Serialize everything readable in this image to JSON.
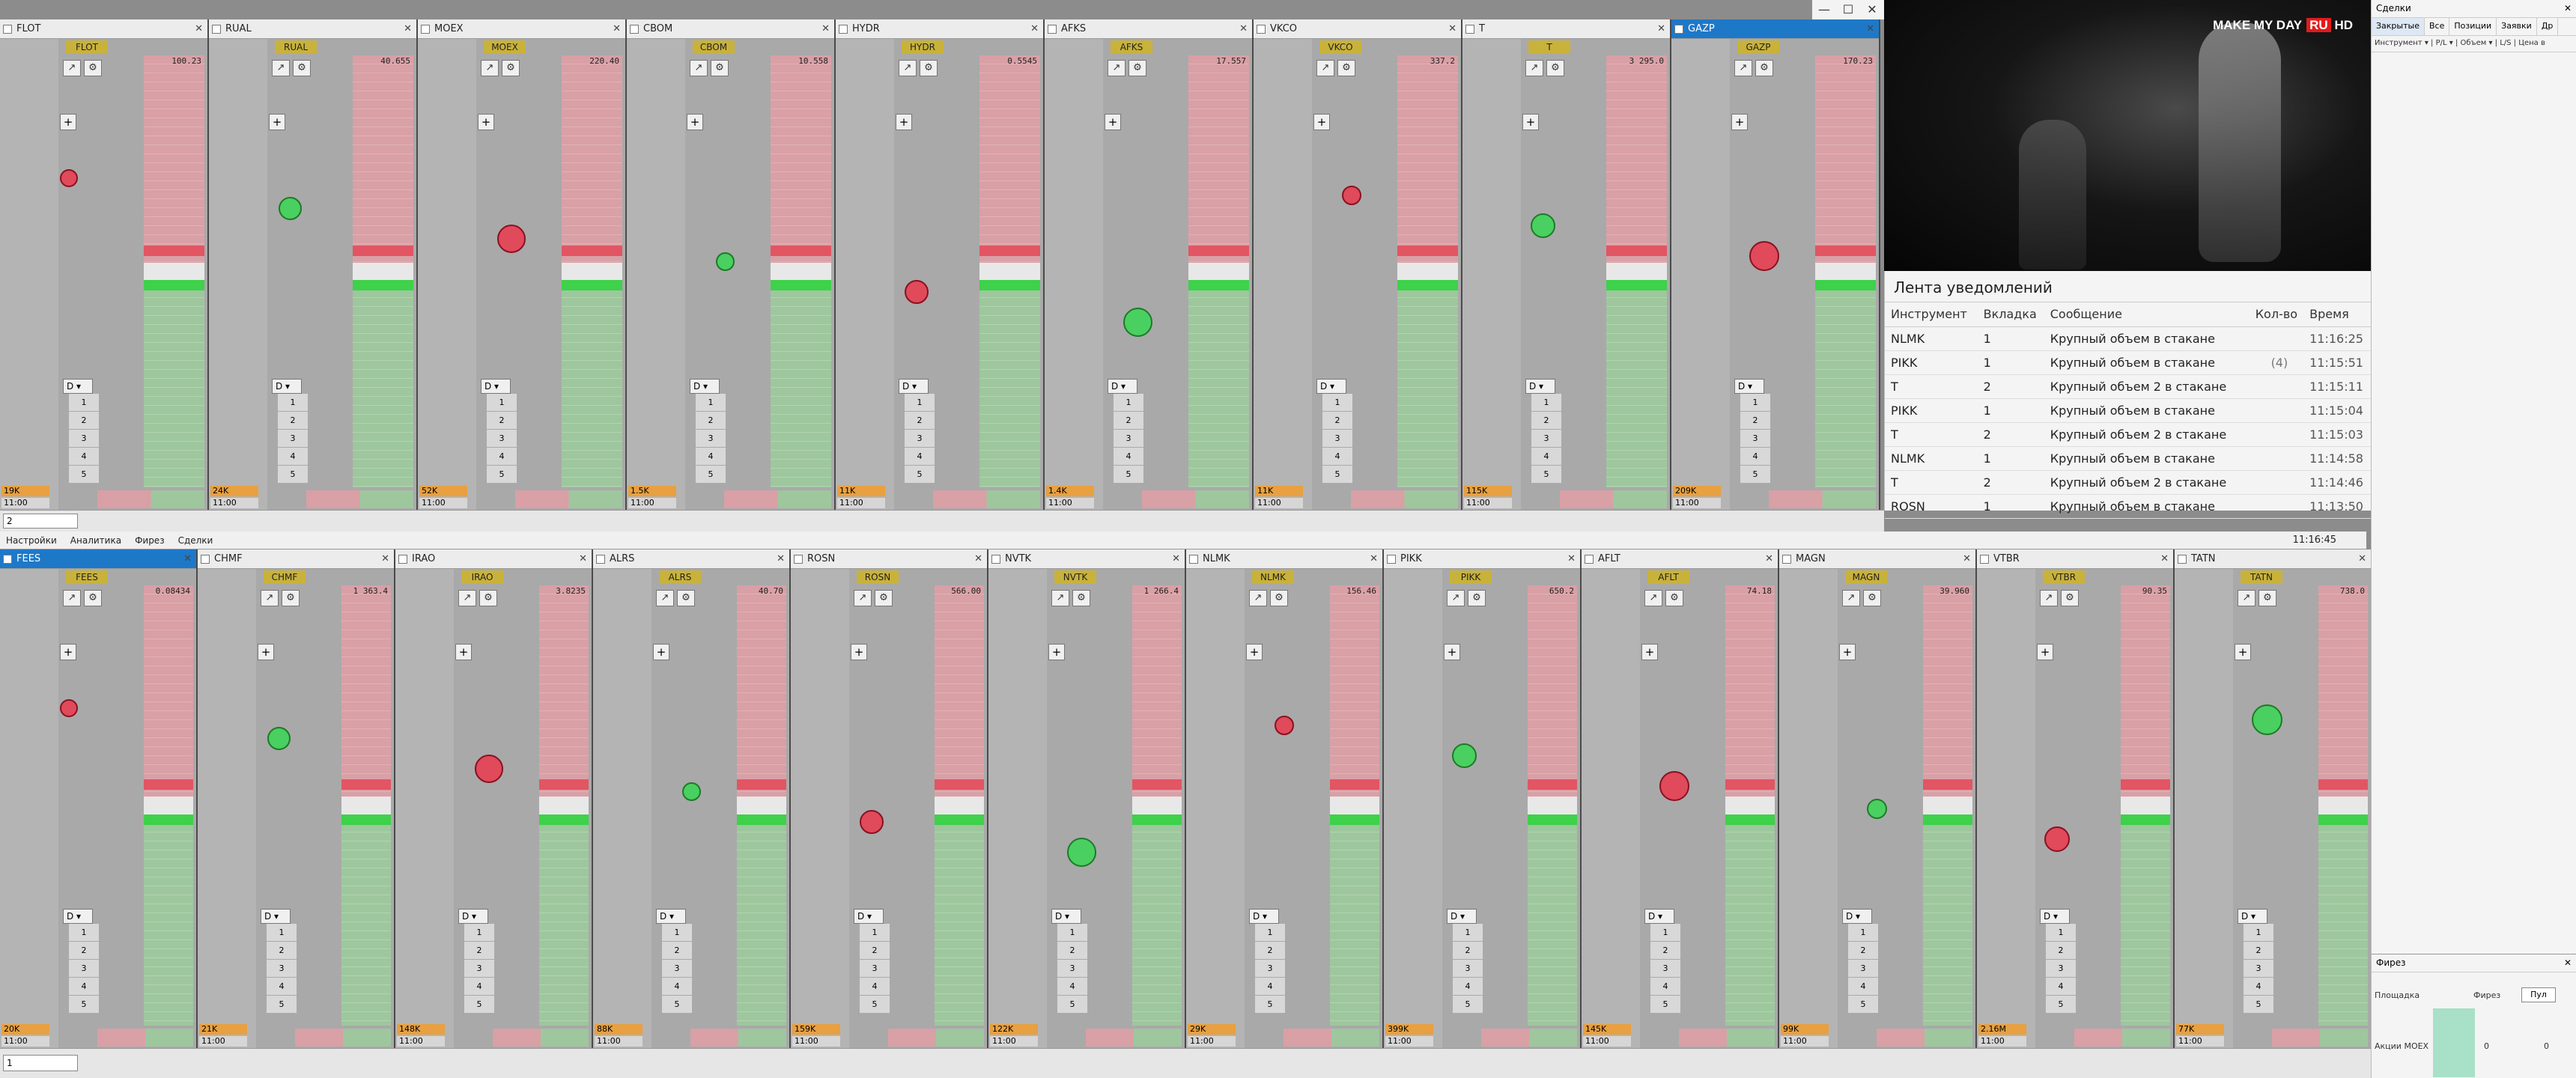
{
  "window": {
    "minimize": "—",
    "maximize": "☐",
    "close": "✕"
  },
  "top_tabs": [
    "FLOT",
    "RUAL",
    "MOEX",
    "CBOM",
    "HYDR",
    "AFKS",
    "VKCO",
    "T",
    "GAZP"
  ],
  "top_active_tab": "GAZP",
  "bottom_tabs": [
    "FEES",
    "CHMF",
    "IRAO",
    "ALRS",
    "ROSN",
    "NVTK",
    "NLMK",
    "PIKK",
    "AFLT",
    "MAGN",
    "VTBR",
    "TATN"
  ],
  "bottom_active_tab": "FEES",
  "top_ladders": [
    {
      "ticker": "FLOT",
      "price": "100.23",
      "vol": "19K",
      "time": "11:00"
    },
    {
      "ticker": "RUAL",
      "price": "40.655",
      "vol": "24K",
      "time": "11:00"
    },
    {
      "ticker": "MOEX",
      "price": "220.40",
      "vol": "52K",
      "time": "11:00"
    },
    {
      "ticker": "CBOM",
      "price": "10.558",
      "vol": "1.5K",
      "time": "11:00"
    },
    {
      "ticker": "HYDR",
      "price": "0.5545",
      "vol": "11K",
      "time": "11:00"
    },
    {
      "ticker": "AFKS",
      "price": "17.557",
      "vol": "1.4K",
      "time": "11:00"
    },
    {
      "ticker": "VKCO",
      "price": "337.2",
      "vol": "11K",
      "time": "11:00"
    },
    {
      "ticker": "T",
      "price": "3 295.0",
      "vol": "115K",
      "time": "11:00"
    },
    {
      "ticker": "GAZP",
      "price": "170.23",
      "vol": "209K",
      "time": "11:00"
    }
  ],
  "bottom_ladders": [
    {
      "ticker": "FEES",
      "price": "0.08434",
      "vol": "20K",
      "time": "11:00"
    },
    {
      "ticker": "CHMF",
      "price": "1 363.4",
      "vol": "21K",
      "time": "11:00"
    },
    {
      "ticker": "IRAO",
      "price": "3.8235",
      "vol": "148K",
      "time": "11:00"
    },
    {
      "ticker": "ALRS",
      "price": "40.70",
      "vol": "88K",
      "time": "11:00"
    },
    {
      "ticker": "ROSN",
      "price": "566.00",
      "vol": "159K",
      "time": "11:00"
    },
    {
      "ticker": "NVTK",
      "price": "1 266.4",
      "vol": "122K",
      "time": "11:00"
    },
    {
      "ticker": "NLMK",
      "price": "156.46",
      "vol": "29K",
      "time": "11:00"
    },
    {
      "ticker": "PIKK",
      "price": "650.2",
      "vol": "399K",
      "time": "11:00"
    },
    {
      "ticker": "AFLT",
      "price": "74.18",
      "vol": "145K",
      "time": "11:00"
    },
    {
      "ticker": "MAGN",
      "price": "39.960",
      "vol": "99K",
      "time": "11:00"
    },
    {
      "ticker": "VTBR",
      "price": "90.35",
      "vol": "2.16M",
      "time": "11:00"
    },
    {
      "ticker": "TATN",
      "price": "738.0",
      "vol": "77K",
      "time": "11:00"
    }
  ],
  "depth_levels": [
    "1",
    "2",
    "3",
    "4",
    "5"
  ],
  "dropdown_label": "D ▾",
  "top_row_field": "2",
  "bottom_row_field": "1",
  "menu": {
    "settings": "Настройки",
    "analytics": "Аналитика",
    "futures": "Фирез",
    "deals": "Сделки",
    "clock": "11:16:45"
  },
  "video": {
    "brand": "MAKE MY DAY",
    "badge": "RU",
    "quality": "HD"
  },
  "notifications": {
    "title": "Лента уведомлений",
    "headers": [
      "Инструмент",
      "Вкладка",
      "Сообщение",
      "Кол-во",
      "Время"
    ],
    "rows": [
      {
        "instrument": "NLMK",
        "tab": "1",
        "message": "Крупный объем в стакане",
        "count": "",
        "time": "11:16:25"
      },
      {
        "instrument": "PIKK",
        "tab": "1",
        "message": "Крупный объем в стакане",
        "count": "(4)",
        "time": "11:15:51"
      },
      {
        "instrument": "T",
        "tab": "2",
        "message": "Крупный объем 2 в стакане",
        "count": "",
        "time": "11:15:11"
      },
      {
        "instrument": "PIKK",
        "tab": "1",
        "message": "Крупный объем в стакане",
        "count": "",
        "time": "11:15:04"
      },
      {
        "instrument": "T",
        "tab": "2",
        "message": "Крупный объем 2 в стакане",
        "count": "",
        "time": "11:15:03"
      },
      {
        "instrument": "NLMK",
        "tab": "1",
        "message": "Крупный объем в стакане",
        "count": "",
        "time": "11:14:58"
      },
      {
        "instrument": "T",
        "tab": "2",
        "message": "Крупный объем 2 в стакане",
        "count": "",
        "time": "11:14:46"
      },
      {
        "instrument": "ROSN",
        "tab": "1",
        "message": "Крупный объем в стакане",
        "count": "",
        "time": "11:13:50"
      }
    ]
  },
  "deals_panel": {
    "title": "Сделки",
    "tabs": [
      "Закрытые",
      "Все",
      "Позиции",
      "Заявки",
      "Др"
    ],
    "columns": "Инструмент ▾ | P/L ▾ | Объем ▾ | L/S | Цена в"
  },
  "futures_panel": {
    "title": "Фирез",
    "platform": "Площадка",
    "futures": "Фирез",
    "button": "Пул",
    "row_label": "Акции MOEX",
    "val1": "0",
    "val2": "0"
  }
}
